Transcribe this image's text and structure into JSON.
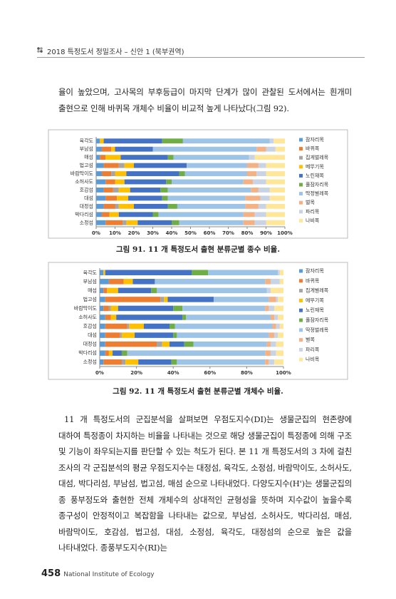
{
  "header": {
    "title": "2018 특정도서 정밀조사 – 신안 1 (북부권역)"
  },
  "paragraphs": [
    "율이 높았으며, 고사목의 부후등급이 마지막 단계가 많이 관찰된 도서에서는 흰개미 출현으로 인해 바퀴목 개체수 비율이 비교적 높게 나타났다(그림 92).",
    "11 개 특정도서의 군집분석을 살펴보면 우점도지수(DI)는 생물군집의 현존량에 대하여 특정종이 차지하는 비율을 나타내는 것으로 해당 생물군집이 특정종에 의해 구조 및 기능이 좌우되는지를 판단할 수 있는 척도가 된다. 본 11 개 특정도서의 3 차에 걸친 조사의 각 군집분석의 평균 우점도지수는 대정섬, 육각도, 소정섬, 바람막이도, 소허사도, 대섬, 박다리섬, 부남섬, 법고섬, 매섬 순으로 나타내었다. 다양도지수(H')는 생물군집의 종 풍부정도와 출현한 전체 개체수의 상대적인 균형성을 뜻하며 지수값이 높을수록 종구성이 안정적이고 복잡함을 나타내는 값으로, 부남섬, 소허사도, 박다리섬, 매섬, 바람막이도, 호감섬, 법고섬, 대섬, 소정섬, 육각도, 대정섬의 순으로 높은 값을 나타내었다. 종풍부도지수(RI)는"
  ],
  "footer": {
    "page": "458",
    "publisher": "National Institute of Ecology"
  },
  "chart_data": [
    {
      "type": "bar",
      "orientation": "horizontal",
      "stacked": true,
      "caption": "그림 91. 11 개 특정도서 출현 분류군별 종수 비율.",
      "categories": [
        "육각도",
        "부남섬",
        "매섬",
        "법고섬",
        "바람막이도",
        "소허사도",
        "호감섬",
        "대섬",
        "대정섬",
        "박다리섬",
        "소정섬"
      ],
      "series": [
        {
          "name": "잠자리목",
          "color": "#5b9bd5",
          "values": [
            2,
            3,
            2,
            4,
            3,
            5,
            4,
            5,
            4,
            3,
            5
          ]
        },
        {
          "name": "바퀴목",
          "color": "#ed7d31",
          "values": [
            0,
            5,
            3,
            8,
            5,
            5,
            5,
            6,
            6,
            4,
            9
          ]
        },
        {
          "name": "집게벌레목",
          "color": "#a5a5a5",
          "values": [
            0,
            0,
            0,
            3,
            2,
            0,
            3,
            0,
            2,
            0,
            2
          ]
        },
        {
          "name": "메뚜기목",
          "color": "#ffc000",
          "values": [
            2,
            2,
            8,
            5,
            6,
            5,
            6,
            6,
            8,
            5,
            6
          ]
        },
        {
          "name": "노린재목",
          "color": "#4472c4",
          "values": [
            31,
            20,
            25,
            28,
            28,
            22,
            16,
            18,
            18,
            18,
            18
          ]
        },
        {
          "name": "풀잠자리목",
          "color": "#70ad47",
          "values": [
            11,
            0,
            3,
            0,
            3,
            3,
            4,
            3,
            5,
            3,
            4
          ]
        },
        {
          "name": "딱정벌레목",
          "color": "#9dc3e6",
          "values": [
            46,
            55,
            40,
            32,
            33,
            38,
            44,
            41,
            36,
            45,
            34
          ]
        },
        {
          "name": "벌목",
          "color": "#f4b183",
          "values": [
            0,
            5,
            0,
            6,
            5,
            5,
            4,
            8,
            7,
            6,
            6
          ]
        },
        {
          "name": "파리목",
          "color": "#c9d3e6",
          "values": [
            2,
            5,
            3,
            4,
            5,
            7,
            6,
            5,
            4,
            6,
            6
          ]
        },
        {
          "name": "나비목",
          "color": "#ffe699",
          "values": [
            6,
            5,
            16,
            10,
            10,
            10,
            8,
            8,
            10,
            10,
            10
          ]
        }
      ],
      "xlim": [
        0,
        100
      ],
      "xticks": [
        {
          "value": 0,
          "label": "0%"
        },
        {
          "value": 10,
          "label": "10%"
        },
        {
          "value": 20,
          "label": "20%"
        },
        {
          "value": 30,
          "label": "30%"
        },
        {
          "value": 40,
          "label": "40%"
        },
        {
          "value": 50,
          "label": "50%"
        },
        {
          "value": 60,
          "label": "60%"
        },
        {
          "value": 70,
          "label": "70%"
        },
        {
          "value": 80,
          "label": "80%"
        },
        {
          "value": 90,
          "label": "90%"
        },
        {
          "value": 100,
          "label": "100%"
        }
      ],
      "grid": false
    },
    {
      "type": "bar",
      "orientation": "horizontal",
      "stacked": true,
      "caption": "그림 92. 11 개 특정도서 출현 분류군별 개체수 비율.",
      "categories": [
        "육각도",
        "부남섬",
        "매섬",
        "법고섬",
        "바람막이도",
        "소허사도",
        "호감섬",
        "대섬",
        "대정섬",
        "박다리섬",
        "소정섬"
      ],
      "series": [
        {
          "name": "잠자리목",
          "color": "#5b9bd5",
          "values": [
            2,
            5,
            2,
            3,
            2,
            3,
            3,
            3,
            3,
            3,
            2
          ]
        },
        {
          "name": "바퀴목",
          "color": "#ed7d31",
          "values": [
            0,
            8,
            2,
            30,
            3,
            3,
            12,
            8,
            28,
            2,
            10
          ]
        },
        {
          "name": "집게벌레목",
          "color": "#a5a5a5",
          "values": [
            0,
            0,
            0,
            2,
            1,
            0,
            1,
            1,
            3,
            0,
            2
          ]
        },
        {
          "name": "메뚜기목",
          "color": "#ffc000",
          "values": [
            1,
            5,
            6,
            2,
            4,
            3,
            8,
            7,
            4,
            2,
            7
          ]
        },
        {
          "name": "노린재목",
          "color": "#4472c4",
          "values": [
            47,
            12,
            18,
            25,
            30,
            36,
            14,
            21,
            8,
            5,
            18
          ]
        },
        {
          "name": "풀잠자리목",
          "color": "#70ad47",
          "values": [
            9,
            0,
            3,
            0,
            5,
            2,
            3,
            2,
            5,
            3,
            3
          ]
        },
        {
          "name": "딱정벌레목",
          "color": "#9dc3e6",
          "values": [
            38,
            60,
            60,
            30,
            45,
            46,
            53,
            50,
            40,
            75,
            48
          ]
        },
        {
          "name": "벌목",
          "color": "#f4b183",
          "values": [
            0,
            3,
            0,
            4,
            2,
            2,
            2,
            3,
            2,
            3,
            2
          ]
        },
        {
          "name": "파리목",
          "color": "#c9d3e6",
          "values": [
            1,
            5,
            2,
            1,
            3,
            2,
            2,
            2,
            3,
            3,
            3
          ]
        },
        {
          "name": "나비목",
          "color": "#ffe699",
          "values": [
            2,
            2,
            7,
            3,
            5,
            3,
            2,
            3,
            4,
            4,
            5
          ]
        }
      ],
      "xlim": [
        0,
        100
      ],
      "xticks": [
        {
          "value": 0,
          "label": "0%"
        },
        {
          "value": 20,
          "label": "20%"
        },
        {
          "value": 40,
          "label": "40%"
        },
        {
          "value": 60,
          "label": "60%"
        },
        {
          "value": 80,
          "label": "80%"
        },
        {
          "value": 100,
          "label": "100%"
        }
      ],
      "grid": false
    }
  ]
}
